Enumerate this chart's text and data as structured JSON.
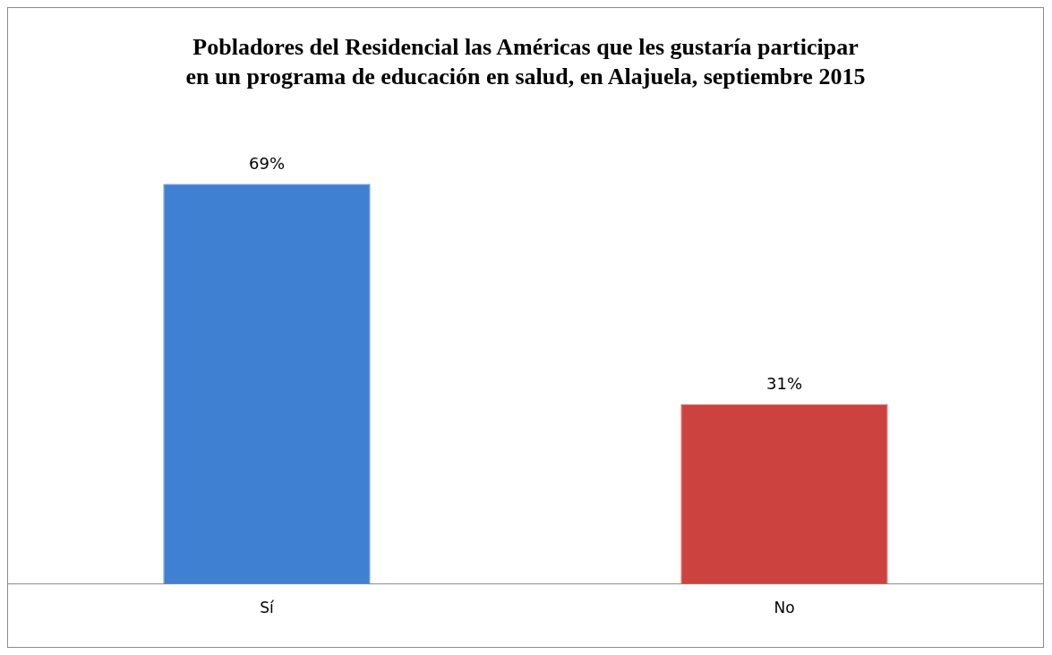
{
  "chart_data": {
    "type": "bar",
    "title": "Pobladores del Residencial las Américas que les gustaría participar en un programa de educación en salud, en Alajuela, septiembre 2015",
    "categories": [
      "Sí",
      "No"
    ],
    "values": [
      69,
      31
    ],
    "colors": [
      "#3f80d2",
      "#cc423e"
    ],
    "value_labels": [
      "69%",
      "31%"
    ],
    "grid": false,
    "legend": false
  }
}
